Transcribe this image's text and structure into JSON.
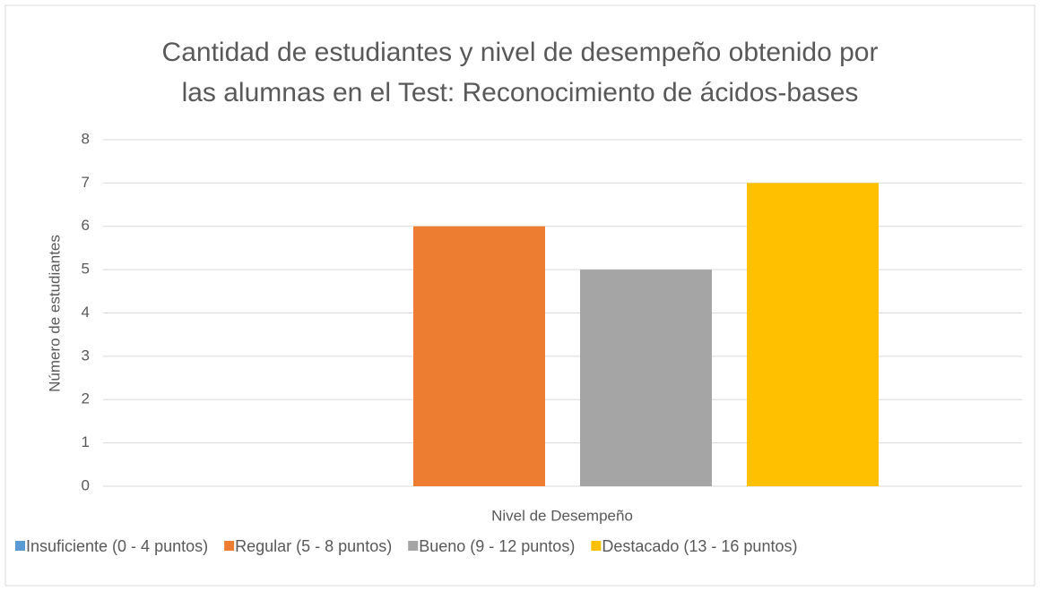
{
  "chart_data": {
    "type": "bar",
    "title": [
      "Cantidad de estudiantes y nivel de desempeño obtenido por",
      "las alumnas en el Test: Reconocimiento de ácidos-bases"
    ],
    "xlabel": "Nivel de Desempeño",
    "ylabel": "Número de estudiantes",
    "categories": [
      null
    ],
    "series": [
      {
        "name": "Insuficiente (0 - 4 puntos)",
        "color": "#5b9bd5",
        "values": [
          0
        ]
      },
      {
        "name": "Regular (5 - 8 puntos)",
        "color": "#ed7d31",
        "values": [
          6
        ]
      },
      {
        "name": "Bueno (9 - 12 puntos)",
        "color": "#a5a5a5",
        "values": [
          5
        ]
      },
      {
        "name": "Destacado (13 - 16 puntos)",
        "color": "#ffc000",
        "values": [
          7
        ]
      }
    ],
    "ylim": [
      0,
      8
    ],
    "yticks": [
      0,
      1,
      2,
      3,
      4,
      5,
      6,
      7,
      8
    ],
    "grid": true,
    "legend": "bottom"
  }
}
